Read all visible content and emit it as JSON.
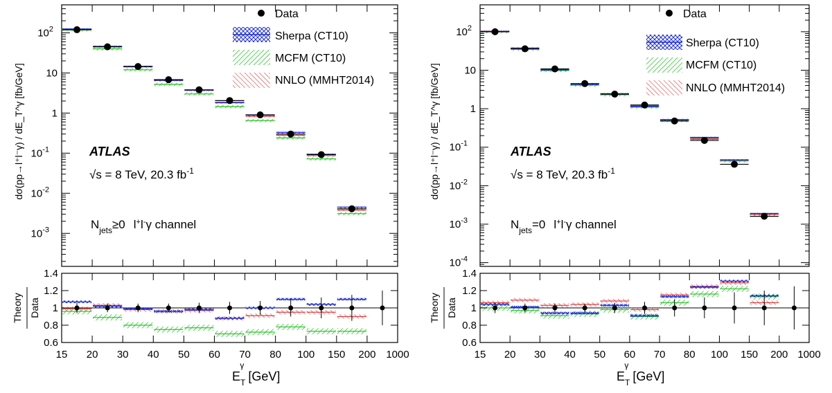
{
  "colors": {
    "data": "#000000",
    "sherpa": "#1f2fd6",
    "mcfm": "#2fc62f",
    "nnlo": "#e23b3b"
  },
  "labels": {
    "atlas": "ATLAS",
    "energy": "√s = 8 TeV, 20.3 fb",
    "energy_sup": "-1",
    "ylabel_main": "dσ(pp→l⁺l⁻γ) / dE_T^γ [fb/GeV]",
    "ylabel_ratio_num": "Theory",
    "ylabel_ratio_den": "Data",
    "xlabel": "E",
    "xlabel_sub": "T",
    "xlabel_sup": "γ",
    "xlabel_unit": "[GeV]"
  },
  "legend": {
    "data": "Data",
    "sherpa": "Sherpa (CT10)",
    "mcfm": "MCFM (CT10)",
    "nnlo": "NNLO (MMHT2014)"
  },
  "chart_data": [
    {
      "type": "line",
      "channel": "Njets≥0   l+l-γ channel",
      "channel_parts": {
        "n": "N",
        "nsub": "jets",
        "cond": "≥0",
        "ll": "l",
        "llsup1": "+",
        "llsup2": "-",
        "gamma": "γ channel"
      },
      "x_bin_labels": [
        "15",
        "20",
        "30",
        "40",
        "50",
        "60",
        "70",
        "80",
        "100",
        "150",
        "200",
        "1000"
      ],
      "bins": [
        "15-20",
        "20-30",
        "30-40",
        "40-50",
        "50-60",
        "60-70",
        "70-80",
        "80-100",
        "100-150",
        "150-200",
        "200-1000"
      ],
      "y_tick_labels": [
        "10^-3",
        "10^-2",
        "10^-1",
        "1",
        "10",
        "10^2"
      ],
      "ylim": [
        0.00015,
        500
      ],
      "data": [
        120,
        45,
        14.5,
        6.8,
        3.8,
        2.05,
        0.9,
        0.3,
        0.092,
        0.0041,
        null
      ],
      "data_err": [
        0.05,
        0.05,
        0.05,
        0.05,
        0.06,
        0.07,
        0.08,
        0.1,
        0.15,
        0.2,
        null
      ],
      "sherpa": [
        125,
        46,
        14.6,
        6.6,
        3.75,
        1.85,
        0.9,
        0.33,
        0.094,
        0.0045,
        null
      ],
      "mcfm": [
        118,
        40,
        12.0,
        5.2,
        3.0,
        1.45,
        0.65,
        0.24,
        0.072,
        0.0031,
        null
      ],
      "nnlo": [
        122,
        46,
        14.3,
        6.5,
        3.7,
        1.8,
        0.83,
        0.28,
        0.087,
        0.0038,
        null
      ],
      "ratio": {
        "ylim": [
          0.6,
          1.4
        ],
        "y_tick_labels": [
          "0.6",
          "0.8",
          "1",
          "1.2",
          "1.4"
        ],
        "data_err": [
          0.06,
          0.05,
          0.05,
          0.05,
          0.06,
          0.07,
          0.08,
          0.1,
          0.12,
          0.15,
          0.2
        ],
        "sherpa": [
          1.07,
          1.02,
          0.99,
          0.96,
          0.98,
          0.88,
          1.0,
          1.1,
          1.04,
          1.1,
          null
        ],
        "mcfm": [
          0.96,
          0.89,
          0.8,
          0.75,
          0.77,
          0.7,
          0.72,
          0.78,
          0.73,
          0.73,
          null
        ],
        "nnlo": [
          0.99,
          1.03,
          0.98,
          0.96,
          0.97,
          0.88,
          0.91,
          0.95,
          0.95,
          0.9,
          null
        ]
      }
    },
    {
      "type": "line",
      "channel": "Njets=0   l+l-γ channel",
      "channel_parts": {
        "n": "N",
        "nsub": "jets",
        "cond": "=0",
        "ll": "l",
        "llsup1": "+",
        "llsup2": "-",
        "gamma": "γ channel"
      },
      "x_bin_labels": [
        "15",
        "20",
        "30",
        "40",
        "50",
        "60",
        "70",
        "80",
        "100",
        "150",
        "200",
        "1000"
      ],
      "bins": [
        "15-20",
        "20-30",
        "30-40",
        "40-50",
        "50-60",
        "60-70",
        "70-80",
        "80-100",
        "100-150",
        "150-200",
        "200-1000"
      ],
      "y_tick_labels": [
        "10^-4",
        "10^-3",
        "10^-2",
        "10^-1",
        "1",
        "10",
        "10^2"
      ],
      "ylim": [
        8e-05,
        500
      ],
      "data": [
        100,
        36,
        10.8,
        4.5,
        2.4,
        1.25,
        0.48,
        0.15,
        0.036,
        0.0016,
        null
      ],
      "data_err": [
        0.05,
        0.05,
        0.05,
        0.05,
        0.06,
        0.07,
        0.1,
        0.12,
        0.18,
        0.2,
        null
      ],
      "sherpa": [
        102,
        37,
        10.2,
        4.3,
        2.45,
        1.15,
        0.52,
        0.18,
        0.047,
        0.0019,
        null
      ],
      "mcfm": [
        100,
        35,
        9.8,
        4.1,
        2.3,
        1.1,
        0.49,
        0.16,
        0.044,
        0.0018,
        null
      ],
      "nnlo": [
        103,
        38,
        10.5,
        4.4,
        2.45,
        1.18,
        0.52,
        0.17,
        0.046,
        0.0018,
        null
      ],
      "ratio": {
        "ylim": [
          0.6,
          1.4
        ],
        "y_tick_labels": [
          "0.6",
          "0.8",
          "1",
          "1.2",
          "1.4"
        ],
        "data_err": [
          0.06,
          0.05,
          0.05,
          0.05,
          0.06,
          0.07,
          0.1,
          0.12,
          0.18,
          0.2,
          0.25
        ],
        "sherpa": [
          1.04,
          1.01,
          0.94,
          0.94,
          1.03,
          0.91,
          1.13,
          1.24,
          1.31,
          1.14,
          null
        ],
        "mcfm": [
          1.0,
          0.97,
          0.91,
          0.93,
          0.98,
          0.9,
          1.06,
          1.16,
          1.22,
          1.13,
          null
        ],
        "nnlo": [
          1.06,
          1.09,
          1.03,
          1.04,
          1.08,
          0.98,
          1.15,
          1.25,
          1.29,
          1.06,
          null
        ]
      }
    }
  ]
}
